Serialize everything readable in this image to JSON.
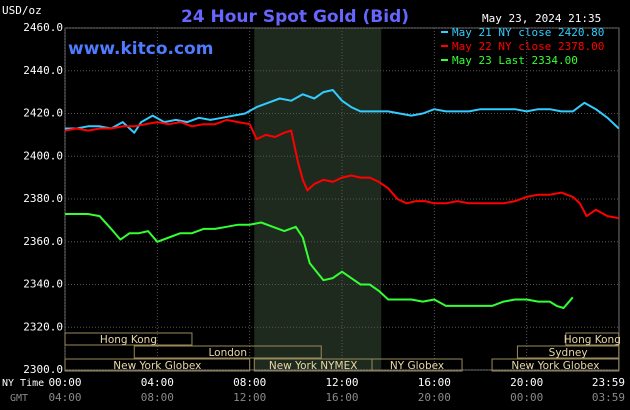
{
  "chart_data": {
    "type": "line",
    "title": "24 Hour Spot Gold (Bid)",
    "website": "www.kitco.com",
    "timestamp": "May 23, 2024 21:35",
    "ylabel": "USD/oz",
    "ylim": [
      2300,
      2460
    ],
    "yticks": [
      "2460.0",
      "2440.0",
      "2420.0",
      "2400.0",
      "2380.0",
      "2360.0",
      "2340.0",
      "2320.0",
      "2300.0"
    ],
    "xlim": [
      0,
      24
    ],
    "x_row1_label": "NY Time",
    "x_row2_label": "GMT",
    "xticks_ny": [
      "00:00",
      "04:00",
      "08:00",
      "12:00",
      "16:00",
      "20:00",
      "23:59"
    ],
    "xticks_gmt": [
      "04:00",
      "08:00",
      "12:00",
      "16:00",
      "20:00",
      "00:00",
      "03:59"
    ],
    "ny_session_band": [
      8.2,
      13.7
    ],
    "grid": true,
    "legend_position": "top-right",
    "series": [
      {
        "name": "May 21 NY close 2420.80",
        "color": "#33ccff",
        "x": [
          0,
          0.5,
          1,
          1.5,
          2,
          2.5,
          3,
          3.3,
          3.8,
          4.3,
          4.8,
          5.3,
          5.8,
          6.3,
          6.8,
          7.3,
          7.8,
          8.3,
          8.8,
          9.3,
          9.8,
          10.3,
          10.8,
          11.2,
          11.6,
          12,
          12.4,
          12.8,
          13.2,
          13.6,
          14,
          14.5,
          15,
          15.5,
          16,
          16.5,
          17,
          17.5,
          18,
          18.5,
          19,
          19.5,
          20,
          20.5,
          21,
          21.5,
          22,
          22.5,
          23,
          23.5,
          23.99
        ],
        "values": [
          2413,
          2413,
          2414,
          2414,
          2413,
          2416,
          2411,
          2416,
          2419,
          2416,
          2417,
          2416,
          2418,
          2417,
          2418,
          2419,
          2420,
          2423,
          2425,
          2427,
          2426,
          2429,
          2427,
          2430,
          2431,
          2426,
          2423,
          2421,
          2421,
          2421,
          2421,
          2420,
          2419,
          2420,
          2422,
          2421,
          2421,
          2421,
          2422,
          2422,
          2422,
          2422,
          2421,
          2422,
          2422,
          2421,
          2421,
          2425,
          2422,
          2418,
          2413
        ]
      },
      {
        "name": "May 22 NY close 2378.00",
        "color": "#ff0000",
        "x": [
          0,
          0.5,
          1,
          1.5,
          2,
          2.5,
          3,
          3.5,
          4,
          4.5,
          5,
          5.5,
          6,
          6.5,
          7,
          7.5,
          8,
          8.3,
          8.7,
          9.1,
          9.5,
          9.8,
          10.1,
          10.3,
          10.5,
          10.8,
          11.2,
          11.6,
          12,
          12.4,
          12.8,
          13.2,
          13.6,
          14,
          14.4,
          14.8,
          15.2,
          15.6,
          16,
          16.5,
          17,
          17.5,
          18,
          18.5,
          19,
          19.5,
          20,
          20.5,
          21,
          21.5,
          22,
          22.3,
          22.6,
          23,
          23.5,
          23.99
        ],
        "values": [
          2412,
          2413,
          2412,
          2413,
          2413,
          2414,
          2414,
          2415,
          2416,
          2415,
          2416,
          2414,
          2415,
          2415,
          2417,
          2416,
          2415,
          2408,
          2410,
          2409,
          2411,
          2412,
          2397,
          2389,
          2384,
          2387,
          2389,
          2388,
          2390,
          2391,
          2390,
          2390,
          2388,
          2385,
          2380,
          2378,
          2379,
          2379,
          2378,
          2378,
          2379,
          2378,
          2378,
          2378,
          2378,
          2379,
          2381,
          2382,
          2382,
          2383,
          2381,
          2378,
          2372,
          2375,
          2372,
          2371
        ]
      },
      {
        "name": "May 23 Last 2334.00",
        "color": "#33ff33",
        "x": [
          0,
          0.5,
          1,
          1.5,
          2,
          2.4,
          2.8,
          3.2,
          3.6,
          4,
          4.5,
          5,
          5.5,
          6,
          6.5,
          7,
          7.5,
          8,
          8.5,
          9,
          9.5,
          10,
          10.3,
          10.6,
          10.9,
          11.2,
          11.6,
          12,
          12.4,
          12.8,
          13.2,
          13.6,
          14,
          14.5,
          15,
          15.5,
          16,
          16.5,
          17,
          17.5,
          18,
          18.5,
          19,
          19.5,
          20,
          20.5,
          21,
          21.3,
          21.6,
          22
        ],
        "values": [
          2373,
          2373,
          2373,
          2372,
          2366,
          2361,
          2364,
          2364,
          2365,
          2360,
          2362,
          2364,
          2364,
          2366,
          2366,
          2367,
          2368,
          2368,
          2369,
          2367,
          2365,
          2367,
          2362,
          2350,
          2346,
          2342,
          2343,
          2346,
          2343,
          2340,
          2340,
          2337,
          2333,
          2333,
          2333,
          2332,
          2333,
          2330,
          2330,
          2330,
          2330,
          2330,
          2332,
          2333,
          2333,
          2332,
          2332,
          2330,
          2329,
          2334
        ]
      }
    ],
    "session_bars": [
      {
        "label": "Hong Kong",
        "row": 1,
        "start": 0,
        "end": 5.5
      },
      {
        "label": "London",
        "row": 2,
        "start": 3,
        "end": 11.1
      },
      {
        "label": "New York Globex",
        "row": 3,
        "start": 0,
        "end": 8
      },
      {
        "label": "New York NYMEX",
        "row": 3,
        "start": 8.2,
        "end": 13.3
      },
      {
        "label": "NY Globex",
        "row": 3,
        "start": 13.3,
        "end": 17.2
      },
      {
        "label": "Hong Kong",
        "row": 1,
        "start": 21.7,
        "end": 23.99
      },
      {
        "label": "Sydney",
        "row": 2,
        "start": 19.6,
        "end": 23.99
      },
      {
        "label": "New York Globex",
        "row": 3,
        "start": 18.5,
        "end": 23.99
      }
    ]
  }
}
